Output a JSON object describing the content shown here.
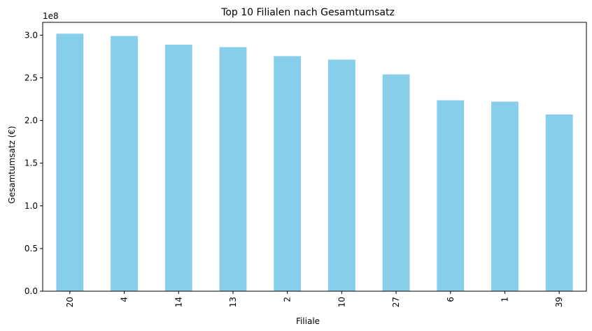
{
  "chart_data": {
    "type": "bar",
    "title": "Top 10 Filialen nach Gesamtumsatz",
    "xlabel": "Filiale",
    "ylabel": "Gesamtumsatz (€)",
    "y_offset_label": "1e8",
    "categories": [
      "20",
      "4",
      "14",
      "13",
      "2",
      "10",
      "27",
      "6",
      "1",
      "39"
    ],
    "values": [
      3.017,
      2.99,
      2.888,
      2.86,
      2.754,
      2.713,
      2.54,
      2.237,
      2.221,
      2.071
    ],
    "value_scale": 100000000,
    "ylim": [
      0,
      3.15
    ],
    "yticks": [
      0.0,
      0.5,
      1.0,
      1.5,
      2.0,
      2.5,
      3.0
    ],
    "ytick_labels": [
      "0.0",
      "0.5",
      "1.0",
      "1.5",
      "2.0",
      "2.5",
      "3.0"
    ],
    "bar_color": "#87CEEB",
    "grid": false,
    "legend": "none",
    "x_tick_rotation": "vertical"
  }
}
